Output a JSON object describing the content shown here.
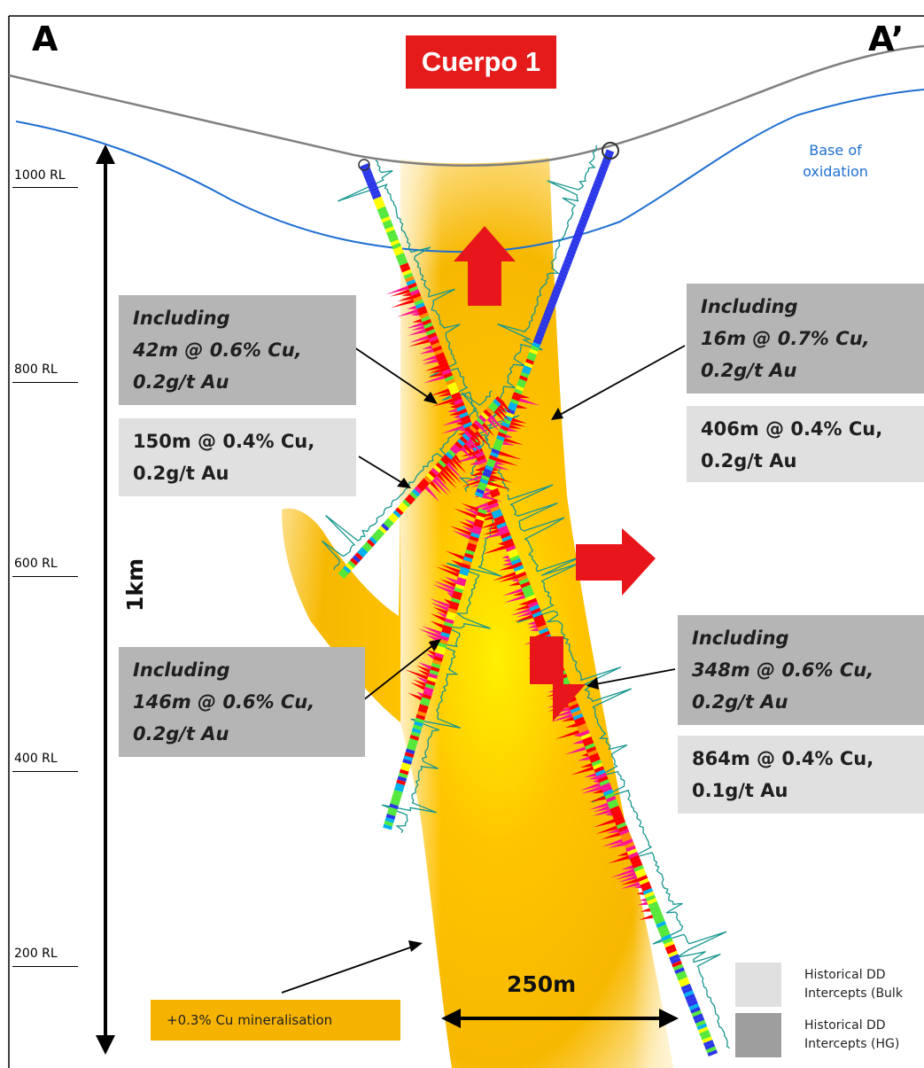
{
  "corner_left": "A",
  "corner_right": "A’",
  "title": "Cuerpo 1",
  "base_oxidation": [
    "Base of",
    "oxidation"
  ],
  "rl_labels": [
    "1000 RL",
    "800 RL",
    "600 RL",
    "400 RL",
    "200 RL"
  ],
  "scale_vertical": "1km",
  "scale_horizontal": "250m",
  "mineralisation_label": "+0.3% Cu mineralisation",
  "intercepts": {
    "upper_left_hg": [
      "Including",
      "42m @ 0.6% Cu,",
      "0.2g/t Au"
    ],
    "upper_left_bulk": [
      "150m @ 0.4% Cu,",
      "0.2g/t Au"
    ],
    "upper_right_hg": [
      "Including",
      "16m @ 0.7% Cu,",
      "0.2g/t Au"
    ],
    "upper_right_bulk": [
      "406m @ 0.4% Cu,",
      "0.2g/t Au"
    ],
    "lower_left_hg": [
      "Including",
      "146m @ 0.6% Cu,",
      "0.2g/t Au"
    ],
    "lower_right_hg": [
      "Including",
      "348m @ 0.6% Cu,",
      "0.2g/t Au"
    ],
    "lower_right_bulk": [
      "864m @ 0.4% Cu,",
      "0.1g/t Au"
    ]
  },
  "legend": {
    "bulk": [
      "Historical DD",
      "Intercepts (Bulk"
    ],
    "hg": [
      "Historical DD",
      "Intercepts (HG)"
    ]
  },
  "colors": {
    "title_red": "#e51b1b",
    "arrow_red": "#e8161b",
    "orebody_orange": "#f6b400",
    "oxidation_blue": "#1f6fd1",
    "topography_grey": "#808080",
    "hg_box": "#b5b5b5",
    "bulk_box": "#e0e0e0",
    "grade_colors": [
      "#2b36e8",
      "#00b0f0",
      "#54e83a",
      "#ffff00",
      "#ff8c00",
      "#ff0000",
      "#ff1493"
    ]
  }
}
